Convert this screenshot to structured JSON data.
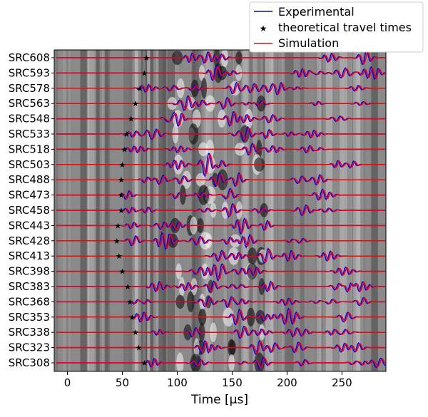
{
  "chart_data": {
    "type": "line",
    "title": "",
    "xlabel": "Time [μs]",
    "ylabel": "",
    "xlim": [
      -12,
      290
    ],
    "x_ticks": [
      0,
      50,
      100,
      150,
      200,
      250
    ],
    "grid": false,
    "legend_position": "top-right, above plot",
    "background": "grayscale image of wavefield",
    "categories": [
      "SRC608",
      "SRC593",
      "SRC578",
      "SRC563",
      "SRC548",
      "SRC533",
      "SRC518",
      "SRC503",
      "SRC488",
      "SRC473",
      "SRC458",
      "SRC443",
      "SRC428",
      "SRC413",
      "SRC398",
      "SRC383",
      "SRC368",
      "SRC353",
      "SRC338",
      "SRC323",
      "SRC308"
    ],
    "series": [
      {
        "name": "Experimental",
        "color": "#0000ff"
      },
      {
        "name": "theoretical travel times",
        "color": "#000000",
        "marker": "star",
        "values": [
          72,
          70,
          66,
          62,
          58,
          54,
          52,
          50,
          49,
          49,
          49,
          46,
          45,
          47,
          50,
          55,
          57,
          59,
          62,
          65,
          70
        ]
      },
      {
        "name": "Simulation",
        "color": "#ff0000"
      }
    ]
  }
}
